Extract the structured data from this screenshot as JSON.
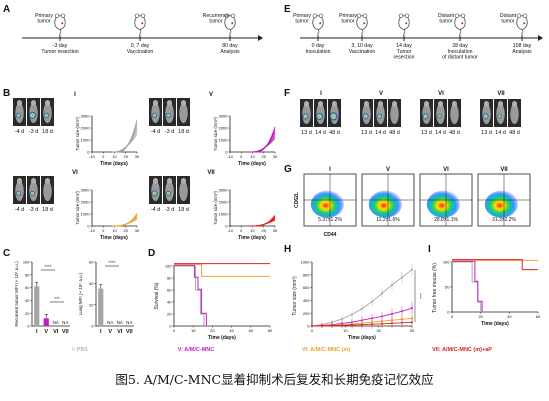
{
  "figure": {
    "caption": "图5. A/M/C-MNC显着抑制术后复发和长期免疫记忆效应",
    "legend": {
      "I": "I: PBS",
      "V": "V: A/M/C-MNC",
      "VI": "VI: A/M/C-MNC (m)",
      "VII": "VII: A/M/C-MNC (m)+aP"
    },
    "colors": {
      "I": "#a6a6a6",
      "V": "#c020c0",
      "VI": "#f0a030",
      "VII": "#e02020",
      "axis": "#222222"
    }
  },
  "panels": {
    "A": {
      "label": "A",
      "timeline": [
        {
          "top": "Primary\ntumor",
          "day": "-3 day",
          "event": "Tumor resection"
        },
        {
          "top": "",
          "day": "0, 7 day",
          "event": "Vaccination"
        },
        {
          "top": "Recurrence\ntumor",
          "day": "80 day",
          "event": "Analysis"
        }
      ]
    },
    "E": {
      "label": "E",
      "timeline": [
        {
          "top": "Primary\ntumor",
          "day": "0 day",
          "event": "Inoculation"
        },
        {
          "top": "Primary\ntumor",
          "day": "3, 10 day",
          "event": "Vaccination"
        },
        {
          "top": "",
          "day": "14 day",
          "event": "Tumor\nresection"
        },
        {
          "top": "Distant\ntumor",
          "day": "28 day",
          "event": "Inoculation\nof distant tumor"
        },
        {
          "top": "Distant\ntumor",
          "day": "108 day",
          "event": "Analysis"
        }
      ]
    },
    "B": {
      "label": "B",
      "groups": [
        "I",
        "V",
        "VI",
        "VII"
      ],
      "image_days": [
        "-4 d",
        "-3 d",
        "18 d"
      ],
      "ylabel": "Tumor size (mm³)",
      "xlabel": "Time (days)",
      "yticks": [
        "3000",
        "2000",
        "1000",
        "0"
      ],
      "xticks": [
        "-10",
        "0",
        "10",
        "20",
        "30"
      ]
    },
    "C": {
      "label": "C",
      "left": {
        "ylabel": "Recurrent tumor MFI (× 10⁵ a.u.)",
        "yticks": [
          "100",
          "80",
          "60",
          "40",
          "20",
          "0"
        ],
        "categories": [
          "I",
          "V",
          "VI",
          "VII"
        ],
        "values": [
          62,
          12,
          0,
          0
        ],
        "na": [
          "",
          "",
          "NA",
          "NA"
        ],
        "sig": [
          "****",
          "***"
        ]
      },
      "right": {
        "ylabel": "Lung MFI (× 10⁶ a.u.)",
        "yticks": [
          "60",
          "40",
          "20",
          "0"
        ],
        "categories": [
          "I",
          "V",
          "VI",
          "VII"
        ],
        "values": [
          35,
          0,
          0,
          0
        ],
        "na": [
          "",
          "NA",
          "NA",
          "NA"
        ],
        "sig": [
          "****"
        ]
      }
    },
    "D": {
      "label": "D",
      "ylabel": "Survival (%)",
      "xlabel": "Time (days)",
      "yticks": [
        "100",
        "80",
        "60",
        "40",
        "20",
        "0"
      ],
      "xticks": [
        "0",
        "15",
        "20",
        "40",
        "60",
        "80"
      ]
    },
    "F": {
      "label": "F",
      "groups": [
        "I",
        "V",
        "VI",
        "VII"
      ],
      "image_days": [
        "13 d",
        "14 d",
        "48 d"
      ]
    },
    "G": {
      "label": "G",
      "xlabel": "CD44",
      "ylabel": "CD62L",
      "groups": [
        "I",
        "V",
        "VI",
        "VII"
      ],
      "values": [
        "5.37±1.2%",
        "11.2±1.6%",
        "28.8±1.1%",
        "31.3±2.2%"
      ]
    },
    "H": {
      "label": "H",
      "ylabel": "Tumor size (mm³)",
      "xlabel": "Time (days)",
      "yticks": [
        "1000",
        "800",
        "600",
        "400",
        "200",
        "0"
      ],
      "xticks": [
        "0",
        "10",
        "20",
        "30"
      ],
      "sig": "****"
    },
    "I": {
      "label": "I",
      "ylabel": "Tumor free mouse (%)",
      "xlabel": "Time (days)",
      "yticks": [
        "100",
        "50",
        "0"
      ],
      "xticks": [
        "0",
        "20",
        "40",
        "60"
      ]
    }
  },
  "chart_data": [
    {
      "type": "bar",
      "title": "",
      "ylabel": "Recurrent tumor MFI (× 10⁵ a.u.)",
      "categories": [
        "I",
        "V",
        "VI",
        "VII"
      ],
      "values": [
        62,
        12,
        0,
        0
      ],
      "ylim": [
        0,
        100
      ]
    },
    {
      "type": "bar",
      "title": "",
      "ylabel": "Lung MFI (× 10⁶ a.u.)",
      "categories": [
        "I",
        "V",
        "VI",
        "VII"
      ],
      "values": [
        35,
        0,
        0,
        0
      ],
      "ylim": [
        0,
        60
      ]
    },
    {
      "type": "line",
      "title": "",
      "ylabel": "Survival (%)",
      "xlabel": "Time (days)",
      "xlim": [
        0,
        80
      ],
      "ylim": [
        0,
        100
      ],
      "series": [
        {
          "name": "I",
          "x": [
            0,
            18,
            18,
            22,
            22,
            25,
            25
          ],
          "y": [
            100,
            100,
            60,
            60,
            20,
            20,
            0
          ]
        },
        {
          "name": "V",
          "x": [
            0,
            17,
            17,
            20,
            20,
            23,
            23,
            27,
            27
          ],
          "y": [
            100,
            100,
            80,
            80,
            60,
            60,
            20,
            20,
            0
          ]
        },
        {
          "name": "VI",
          "x": [
            0,
            23,
            23,
            80
          ],
          "y": [
            100,
            100,
            80,
            80
          ]
        },
        {
          "name": "VII",
          "x": [
            0,
            80
          ],
          "y": [
            100,
            100
          ]
        }
      ]
    },
    {
      "type": "line",
      "title": "",
      "ylabel": "Tumor size (mm³)",
      "xlabel": "Time (days)",
      "xlim": [
        0,
        30
      ],
      "ylim": [
        0,
        1000
      ],
      "series": [
        {
          "name": "I",
          "x": [
            0,
            3,
            6,
            9,
            12,
            15,
            18,
            21,
            24,
            27,
            30
          ],
          "y": [
            0,
            20,
            60,
            110,
            180,
            270,
            380,
            510,
            640,
            760,
            880
          ]
        },
        {
          "name": "V",
          "x": [
            0,
            3,
            6,
            9,
            12,
            15,
            18,
            21,
            24,
            27,
            30
          ],
          "y": [
            0,
            10,
            20,
            40,
            60,
            90,
            120,
            150,
            190,
            230,
            280
          ]
        },
        {
          "name": "VI",
          "x": [
            0,
            3,
            6,
            9,
            12,
            15,
            18,
            21,
            24,
            27,
            30
          ],
          "y": [
            0,
            5,
            10,
            20,
            30,
            45,
            60,
            75,
            90,
            105,
            120
          ]
        },
        {
          "name": "VII",
          "x": [
            0,
            3,
            6,
            9,
            12,
            15,
            18,
            21,
            24,
            27,
            30
          ],
          "y": [
            0,
            3,
            6,
            10,
            15,
            20,
            28,
            35,
            42,
            50,
            58
          ]
        }
      ]
    },
    {
      "type": "line",
      "title": "",
      "ylabel": "Tumor free mouse (%)",
      "xlabel": "Time (days)",
      "xlim": [
        0,
        60
      ],
      "ylim": [
        0,
        100
      ],
      "series": [
        {
          "name": "I",
          "x": [
            0,
            14,
            14,
            18,
            18,
            20,
            20
          ],
          "y": [
            100,
            100,
            60,
            60,
            20,
            20,
            0
          ]
        },
        {
          "name": "V",
          "x": [
            0,
            16,
            16,
            18,
            18,
            21,
            21
          ],
          "y": [
            100,
            100,
            60,
            60,
            20,
            20,
            0
          ]
        },
        {
          "name": "VI",
          "x": [
            0,
            60
          ],
          "y": [
            100,
            100
          ]
        },
        {
          "name": "VII",
          "x": [
            0,
            49,
            49,
            60
          ],
          "y": [
            100,
            100,
            80,
            80
          ]
        }
      ]
    }
  ]
}
